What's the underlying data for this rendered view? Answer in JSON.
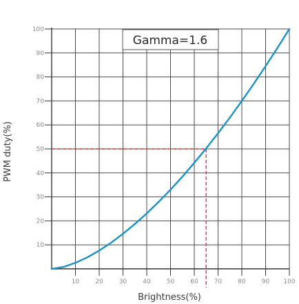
{
  "chart_data": {
    "type": "line",
    "title": "",
    "annotation": "Gamma=1.6",
    "xlabel": "Brightness(%)",
    "ylabel": "PWM duty(%)",
    "xlim": [
      0,
      100
    ],
    "ylim": [
      0,
      100
    ],
    "x_ticks": [
      10,
      20,
      30,
      40,
      50,
      60,
      70,
      80,
      90,
      100
    ],
    "x_tick_labels": [
      "10",
      "20",
      "30",
      "40",
      "50",
      "60",
      "70",
      "80",
      "90",
      "100"
    ],
    "y_ticks": [
      10,
      20,
      30,
      40,
      50,
      60,
      70,
      80,
      90,
      100
    ],
    "y_tick_labels": [
      "10",
      "20",
      "30",
      "40",
      "50",
      "60",
      "70",
      "80",
      "90",
      "100"
    ],
    "grid": true,
    "series": [
      {
        "x": [
          0,
          5,
          10,
          15,
          20,
          25,
          30,
          35,
          40,
          45,
          50,
          55,
          60,
          65,
          70,
          75,
          80,
          85,
          90,
          95,
          100
        ],
        "y": [
          0,
          0.8,
          2.5,
          4.8,
          7.6,
          10.9,
          14.6,
          18.7,
          23.1,
          27.9,
          33.0,
          38.4,
          44.2,
          50.2,
          56.5,
          63.1,
          70.0,
          77.1,
          84.5,
          92.1,
          100
        ],
        "color": "#1a8fc0"
      }
    ],
    "reference": {
      "x": 65,
      "y": 50,
      "color": "#e0323c"
    }
  }
}
